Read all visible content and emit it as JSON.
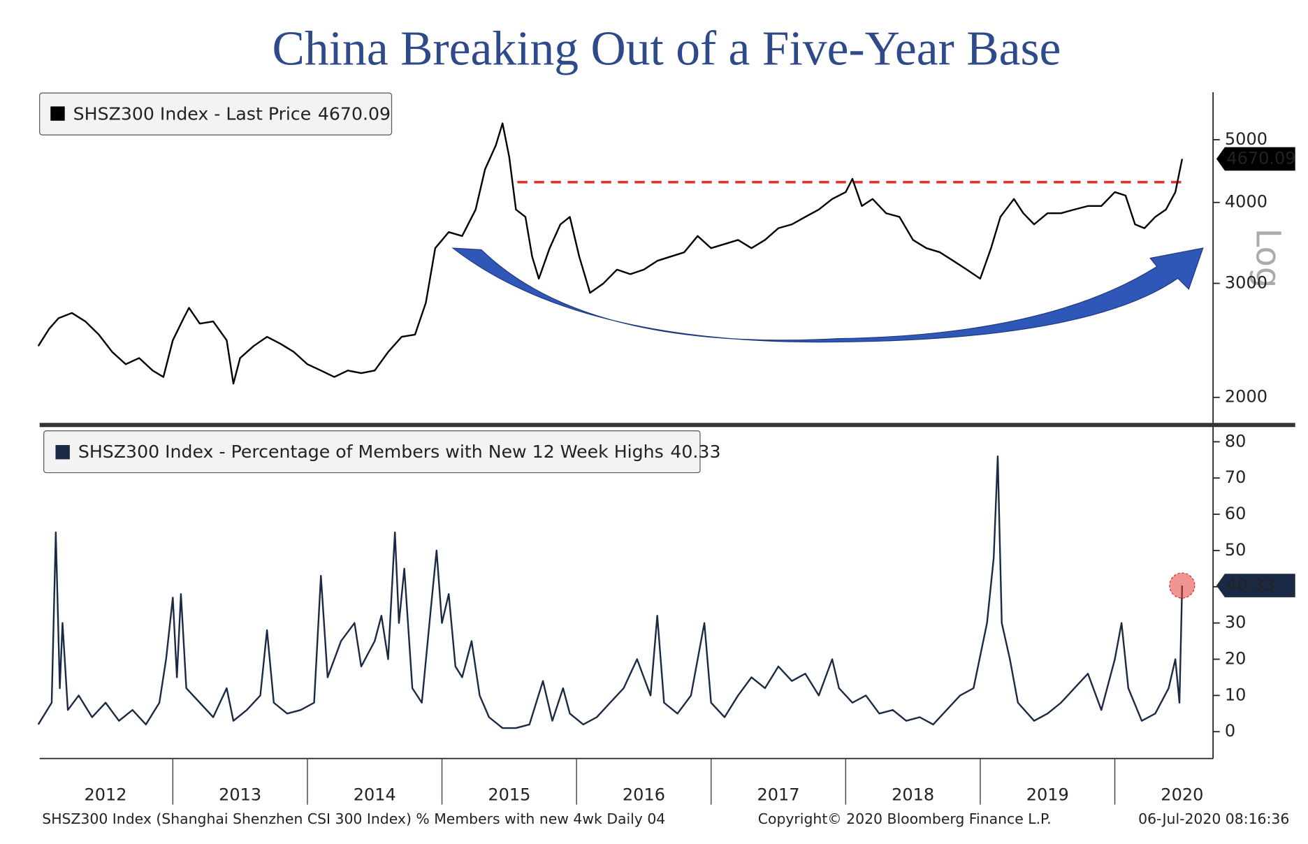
{
  "title": "China Breaking Out of a Five-Year Base",
  "chart_data": [
    {
      "type": "line",
      "log_scale": true,
      "y_axis_label": "Log",
      "xlim": [
        2012.01,
        2020.73
      ],
      "ylim": [
        1835,
        5920
      ],
      "yticks": [
        2000,
        3000,
        4000,
        5000
      ],
      "hline": {
        "value": 4300,
        "from": 2015.56,
        "color": "#e8302a"
      },
      "series": [
        {
          "name": "SHSZ300 Index - Last Price",
          "color": "#000000",
          "x": [
            2012.0,
            2012.08,
            2012.15,
            2012.25,
            2012.35,
            2012.45,
            2012.55,
            2012.65,
            2012.75,
            2012.85,
            2012.93,
            2013.0,
            2013.08,
            2013.12,
            2013.2,
            2013.3,
            2013.4,
            2013.45,
            2013.5,
            2013.6,
            2013.7,
            2013.8,
            2013.9,
            2014.0,
            2014.1,
            2014.2,
            2014.3,
            2014.4,
            2014.5,
            2014.6,
            2014.7,
            2014.8,
            2014.88,
            2014.95,
            2015.05,
            2015.15,
            2015.25,
            2015.32,
            2015.4,
            2015.45,
            2015.5,
            2015.55,
            2015.62,
            2015.67,
            2015.72,
            2015.8,
            2015.88,
            2015.95,
            2016.02,
            2016.1,
            2016.2,
            2016.3,
            2016.4,
            2016.5,
            2016.6,
            2016.7,
            2016.8,
            2016.9,
            2017.0,
            2017.1,
            2017.2,
            2017.3,
            2017.4,
            2017.5,
            2017.6,
            2017.7,
            2017.8,
            2017.9,
            2018.0,
            2018.05,
            2018.12,
            2018.2,
            2018.3,
            2018.4,
            2018.5,
            2018.6,
            2018.7,
            2018.8,
            2018.9,
            2019.0,
            2019.08,
            2019.15,
            2019.25,
            2019.32,
            2019.4,
            2019.5,
            2019.6,
            2019.7,
            2019.8,
            2019.9,
            2020.0,
            2020.08,
            2020.15,
            2020.22,
            2020.3,
            2020.38,
            2020.45,
            2020.5
          ],
          "values": [
            2400,
            2550,
            2650,
            2700,
            2620,
            2500,
            2350,
            2250,
            2300,
            2200,
            2150,
            2450,
            2650,
            2750,
            2600,
            2620,
            2450,
            2100,
            2300,
            2400,
            2480,
            2420,
            2350,
            2250,
            2200,
            2150,
            2200,
            2180,
            2200,
            2350,
            2480,
            2500,
            2800,
            3400,
            3600,
            3550,
            3900,
            4500,
            4900,
            5300,
            4700,
            3900,
            3800,
            3300,
            3050,
            3400,
            3700,
            3800,
            3300,
            2900,
            3000,
            3150,
            3100,
            3150,
            3250,
            3300,
            3350,
            3550,
            3400,
            3450,
            3500,
            3400,
            3500,
            3650,
            3700,
            3800,
            3900,
            4050,
            4150,
            4350,
            3950,
            4050,
            3850,
            3800,
            3500,
            3400,
            3350,
            3250,
            3150,
            3050,
            3400,
            3800,
            4050,
            3850,
            3700,
            3850,
            3850,
            3900,
            3950,
            3950,
            4150,
            4100,
            3700,
            3650,
            3800,
            3900,
            4150,
            4670.09
          ]
        }
      ]
    },
    {
      "type": "line",
      "xlim": [
        2012.01,
        2020.73
      ],
      "ylim": [
        -7.4,
        82.8
      ],
      "yticks": [
        0,
        10,
        20,
        30,
        40,
        50,
        60,
        70,
        80
      ],
      "xticks": [
        {
          "value": 2012.5,
          "label": "2012"
        },
        {
          "value": 2013.5,
          "label": "2013"
        },
        {
          "value": 2014.5,
          "label": "2014"
        },
        {
          "value": 2015.5,
          "label": "2015"
        },
        {
          "value": 2016.5,
          "label": "2016"
        },
        {
          "value": 2017.5,
          "label": "2017"
        },
        {
          "value": 2018.5,
          "label": "2018"
        },
        {
          "value": 2019.5,
          "label": "2019"
        },
        {
          "value": 2020.5,
          "label": "2020"
        }
      ],
      "series": [
        {
          "name": "SHSZ300 Index - Percentage of Members with New 12 Week Highs",
          "color": "#1b2a44",
          "x": [
            2012.0,
            2012.05,
            2012.1,
            2012.13,
            2012.16,
            2012.18,
            2012.22,
            2012.3,
            2012.4,
            2012.5,
            2012.6,
            2012.7,
            2012.8,
            2012.9,
            2012.95,
            2013.0,
            2013.03,
            2013.06,
            2013.1,
            2013.2,
            2013.3,
            2013.4,
            2013.45,
            2013.55,
            2013.65,
            2013.7,
            2013.75,
            2013.85,
            2013.95,
            2014.05,
            2014.1,
            2014.15,
            2014.25,
            2014.35,
            2014.4,
            2014.5,
            2014.55,
            2014.6,
            2014.65,
            2014.68,
            2014.72,
            2014.78,
            2014.85,
            2014.92,
            2014.96,
            2015.0,
            2015.05,
            2015.1,
            2015.15,
            2015.22,
            2015.28,
            2015.35,
            2015.45,
            2015.55,
            2015.65,
            2015.75,
            2015.82,
            2015.9,
            2015.95,
            2016.05,
            2016.15,
            2016.25,
            2016.35,
            2016.45,
            2016.55,
            2016.6,
            2016.65,
            2016.75,
            2016.85,
            2016.95,
            2017.0,
            2017.1,
            2017.2,
            2017.3,
            2017.4,
            2017.5,
            2017.6,
            2017.7,
            2017.8,
            2017.9,
            2017.95,
            2018.05,
            2018.15,
            2018.25,
            2018.35,
            2018.45,
            2018.55,
            2018.65,
            2018.75,
            2018.85,
            2018.95,
            2019.05,
            2019.1,
            2019.13,
            2019.16,
            2019.22,
            2019.28,
            2019.4,
            2019.5,
            2019.6,
            2019.7,
            2019.8,
            2019.9,
            2020.0,
            2020.05,
            2020.1,
            2020.2,
            2020.3,
            2020.4,
            2020.45,
            2020.48,
            2020.5
          ],
          "values": [
            2,
            5,
            8,
            55,
            12,
            30,
            6,
            10,
            4,
            8,
            3,
            6,
            2,
            8,
            20,
            37,
            15,
            38,
            12,
            8,
            4,
            12,
            3,
            6,
            10,
            28,
            8,
            5,
            6,
            8,
            43,
            15,
            25,
            30,
            18,
            25,
            32,
            20,
            55,
            30,
            45,
            12,
            8,
            35,
            50,
            30,
            38,
            18,
            15,
            25,
            10,
            4,
            1,
            1,
            2,
            14,
            3,
            12,
            5,
            2,
            4,
            8,
            12,
            20,
            10,
            32,
            8,
            5,
            10,
            30,
            8,
            4,
            10,
            15,
            12,
            18,
            14,
            16,
            10,
            20,
            12,
            8,
            10,
            5,
            6,
            3,
            4,
            2,
            6,
            10,
            12,
            30,
            48,
            76,
            30,
            20,
            8,
            3,
            5,
            8,
            12,
            16,
            6,
            20,
            30,
            12,
            3,
            5,
            12,
            20,
            8,
            40.33
          ]
        }
      ]
    }
  ],
  "footer": {
    "left": "SHSZ300 Index (Shanghai Shenzhen CSI 300 Index) % Members with new 4wk  Daily 04",
    "center": "Copyright© 2020 Bloomberg Finance L.P.",
    "right": "06-Jul-2020 08:16:36"
  }
}
